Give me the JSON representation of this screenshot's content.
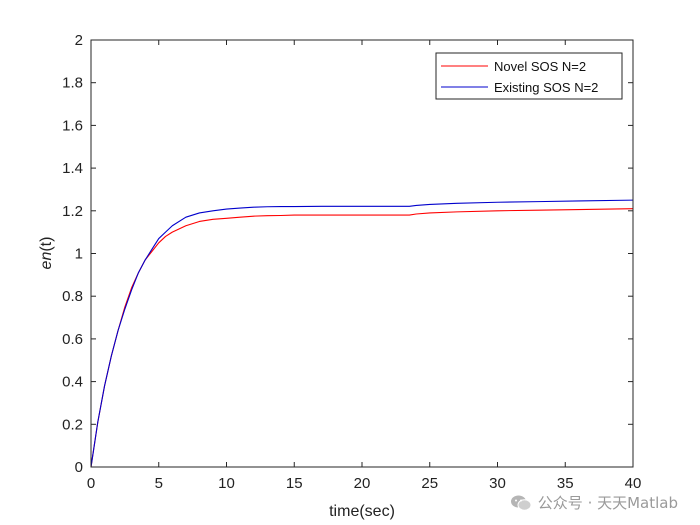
{
  "chart_data": {
    "type": "line",
    "title": "",
    "xlabel": "time(sec)",
    "ylabel_main": "en",
    "ylabel_arg": "(t)",
    "xlim": [
      0,
      40
    ],
    "ylim": [
      0,
      2
    ],
    "xticks": [
      0,
      5,
      10,
      15,
      20,
      25,
      30,
      35,
      40
    ],
    "yticks": [
      0,
      0.2,
      0.4,
      0.6,
      0.8,
      1,
      1.2,
      1.4,
      1.6,
      1.8,
      2
    ],
    "grid": false,
    "legend_position": "top-right",
    "series": [
      {
        "name": "Novel SOS N=2",
        "color": "#ff0000",
        "x": [
          0,
          0.5,
          1,
          1.5,
          2,
          2.5,
          3,
          3.5,
          4,
          4.5,
          5,
          5.5,
          6,
          7,
          8,
          9,
          10,
          11,
          12,
          13,
          14,
          15,
          17,
          20,
          22,
          23.5,
          24,
          25,
          27,
          30,
          33,
          36,
          40
        ],
        "y": [
          0,
          0.21,
          0.38,
          0.52,
          0.64,
          0.75,
          0.84,
          0.91,
          0.97,
          1.01,
          1.05,
          1.08,
          1.1,
          1.13,
          1.15,
          1.16,
          1.165,
          1.17,
          1.175,
          1.177,
          1.178,
          1.18,
          1.18,
          1.18,
          1.18,
          1.18,
          1.185,
          1.19,
          1.195,
          1.2,
          1.203,
          1.206,
          1.21
        ]
      },
      {
        "name": "Existing SOS N=2",
        "color": "#0000cc",
        "x": [
          0,
          0.5,
          1,
          1.5,
          2,
          2.5,
          3,
          3.5,
          4,
          4.5,
          5,
          5.5,
          6,
          7,
          8,
          9,
          10,
          11,
          12,
          13,
          14,
          15,
          17,
          20,
          22,
          23.5,
          24,
          25,
          27,
          30,
          33,
          36,
          40
        ],
        "y": [
          0,
          0.21,
          0.38,
          0.52,
          0.64,
          0.74,
          0.83,
          0.91,
          0.97,
          1.02,
          1.07,
          1.1,
          1.13,
          1.17,
          1.19,
          1.2,
          1.208,
          1.213,
          1.217,
          1.219,
          1.22,
          1.22,
          1.221,
          1.221,
          1.221,
          1.221,
          1.225,
          1.23,
          1.235,
          1.24,
          1.243,
          1.246,
          1.25
        ]
      }
    ]
  },
  "watermark": {
    "text": "公众号 · 天天Matlab",
    "icon": "wechat-icon"
  }
}
